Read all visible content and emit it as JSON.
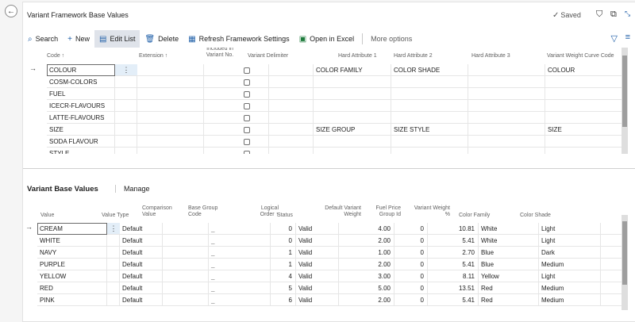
{
  "page": {
    "title": "Variant Framework Base Values",
    "saved_label": "Saved"
  },
  "icons": {
    "back": "back-arrow-icon",
    "saved": "check-icon",
    "bookmark": "bookmark-icon",
    "open_new": "open-in-new-window-icon",
    "collapse": "collapse-icon"
  },
  "actions": {
    "search": "Search",
    "new": "New",
    "edit_list": "Edit List",
    "delete": "Delete",
    "refresh": "Refresh Framework Settings",
    "open_excel": "Open in Excel",
    "more": "More options"
  },
  "top_grid": {
    "headers": {
      "code": "Code ↑",
      "extension": "Extension ↑",
      "included": "Included in Variant No.",
      "delimiter": "Variant Delimiter",
      "attr1": "Hard Attribute 1",
      "attr2": "Hard Attribute 2",
      "attr3": "Hard Attribute 3",
      "curve": "Variant Weight Curve Code"
    },
    "rows": [
      {
        "code": "COLOUR",
        "attr1": "COLOR FAMILY",
        "attr2": "COLOR SHADE",
        "curve": "COLOUR"
      },
      {
        "code": "COSM-COLORS",
        "attr1": "",
        "attr2": "",
        "curve": ""
      },
      {
        "code": "FUEL",
        "attr1": "",
        "attr2": "",
        "curve": ""
      },
      {
        "code": "ICECR-FLAVOURS",
        "attr1": "",
        "attr2": "",
        "curve": ""
      },
      {
        "code": "LATTE-FLAVOURS",
        "attr1": "",
        "attr2": "",
        "curve": ""
      },
      {
        "code": "SIZE",
        "attr1": "SIZE GROUP",
        "attr2": "SIZE STYLE",
        "curve": "SIZE"
      },
      {
        "code": "SODA FLAVOUR",
        "attr1": "",
        "attr2": "",
        "curve": ""
      },
      {
        "code": "STYLE",
        "attr1": "",
        "attr2": "",
        "curve": ""
      }
    ]
  },
  "part": {
    "title": "Variant Base Values",
    "manage": "Manage"
  },
  "bottom_grid": {
    "headers": {
      "value": "Value",
      "value_type": "Value Type",
      "comparison": "Comparison Value",
      "base_group": "Base Group Code",
      "logical_order": "Logical Order ↑",
      "status": "Status",
      "weight": "Default Variant Weight",
      "fuel": "Fuel Price Group Id",
      "weight_pct": "Variant Weight %",
      "family": "Color Family",
      "shade": "Color Shade"
    },
    "rows": [
      {
        "value": "CREAM",
        "type": "Default",
        "base": "_",
        "order": "0",
        "status": "Valid",
        "weight": "4.00",
        "fuel": "0",
        "pct": "10.81",
        "family": "White",
        "shade": "Light"
      },
      {
        "value": "WHITE",
        "type": "Default",
        "base": "_",
        "order": "0",
        "status": "Valid",
        "weight": "2.00",
        "fuel": "0",
        "pct": "5.41",
        "family": "White",
        "shade": "Light"
      },
      {
        "value": "NAVY",
        "type": "Default",
        "base": "_",
        "order": "1",
        "status": "Valid",
        "weight": "1.00",
        "fuel": "0",
        "pct": "2.70",
        "family": "Blue",
        "shade": "Dark"
      },
      {
        "value": "PURPLE",
        "type": "Default",
        "base": "_",
        "order": "1",
        "status": "Valid",
        "weight": "2.00",
        "fuel": "0",
        "pct": "5.41",
        "family": "Blue",
        "shade": "Medium"
      },
      {
        "value": "YELLOW",
        "type": "Default",
        "base": "_",
        "order": "4",
        "status": "Valid",
        "weight": "3.00",
        "fuel": "0",
        "pct": "8.11",
        "family": "Yellow",
        "shade": "Light"
      },
      {
        "value": "RED",
        "type": "Default",
        "base": "_",
        "order": "5",
        "status": "Valid",
        "weight": "5.00",
        "fuel": "0",
        "pct": "13.51",
        "family": "Red",
        "shade": "Medium"
      },
      {
        "value": "PINK",
        "type": "Default",
        "base": "_",
        "order": "6",
        "status": "Valid",
        "weight": "2.00",
        "fuel": "0",
        "pct": "5.41",
        "family": "Red",
        "shade": "Medium"
      }
    ]
  },
  "colors": {
    "accent": "#1f5fa8",
    "excel": "#1e7b3c",
    "selection": "#e3eef8"
  }
}
